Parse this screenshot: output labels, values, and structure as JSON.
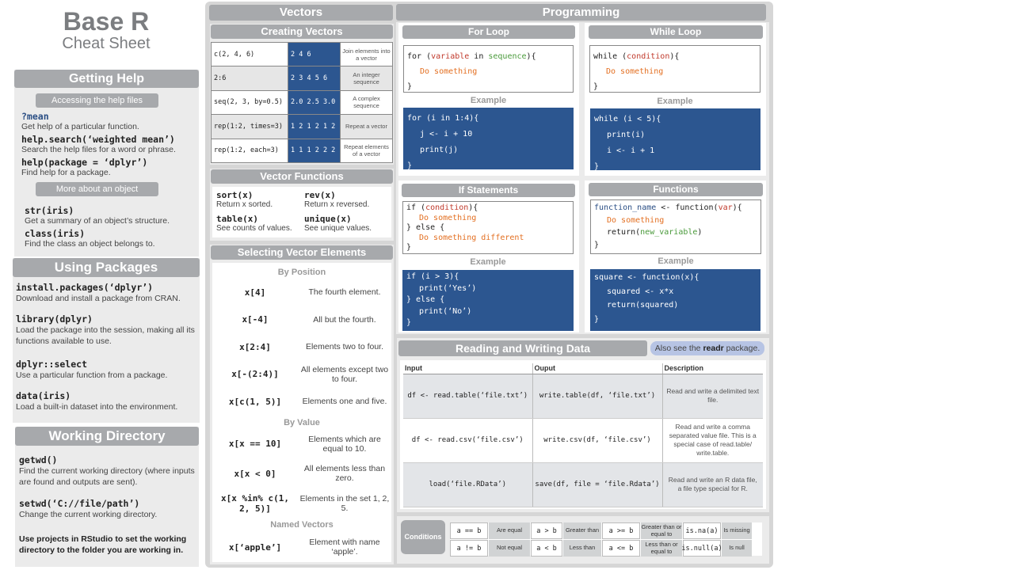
{
  "title": {
    "line1": "Base R",
    "line2": "Cheat Sheet"
  },
  "help": {
    "header": "Getting Help",
    "sub1": "Accessing the help files",
    "items1": [
      {
        "code": "?mean",
        "desc": "Get help of a particular function."
      },
      {
        "code": "help.search(‘weighted mean’)",
        "desc": "Search the help files for a word or phrase."
      },
      {
        "code": "help(package = ‘dplyr’)",
        "desc": "Find help for a package."
      }
    ],
    "sub2": "More about an object",
    "items2": [
      {
        "code": "str(iris)",
        "desc": "Get a summary of an object’s structure."
      },
      {
        "code": "class(iris)",
        "desc": "Find the class an object belongs to."
      }
    ]
  },
  "packages": {
    "header": "Using Packages",
    "items": [
      {
        "code": "install.packages(‘dplyr’)",
        "desc": "Download and install a package from CRAN."
      },
      {
        "code": "library(dplyr)",
        "desc": "Load the package into the session, making all its functions available to use."
      },
      {
        "code": "dplyr::select",
        "desc": "Use a particular function from a package."
      },
      {
        "code": "data(iris)",
        "desc": "Load a built-in dataset into the environment."
      }
    ]
  },
  "wd": {
    "header": "Working Directory",
    "items": [
      {
        "code": "getwd()",
        "desc": "Find the current working directory (where inputs are found and outputs are sent)."
      },
      {
        "code": "setwd(‘C://file/path’)",
        "desc": "Change the current working directory."
      }
    ],
    "note": "Use projects in RStudio to set the working directory to the folder you are working in."
  },
  "vectors": {
    "header": "Vectors",
    "creating": {
      "header": "Creating Vectors",
      "rows": [
        {
          "code": "c(2, 4, 6)",
          "result": "2 4 6",
          "desc": "Join elements into a vector"
        },
        {
          "code": "2:6",
          "result": "2 3 4 5 6",
          "desc": "An integer sequence"
        },
        {
          "code": "seq(2, 3, by=0.5)",
          "result": "2.0 2.5 3.0",
          "desc": "A complex sequence"
        },
        {
          "code": "rep(1:2, times=3)",
          "result": "1 2 1 2 1 2",
          "desc": "Repeat a vector"
        },
        {
          "code": "rep(1:2, each=3)",
          "result": "1 1 1 2 2 2",
          "desc": "Repeat elements of a vector"
        }
      ]
    },
    "functions": {
      "header": "Vector Functions",
      "items": [
        {
          "code": "sort(x)",
          "desc": "Return x sorted."
        },
        {
          "code": "rev(x)",
          "desc": "Return x reversed."
        },
        {
          "code": "table(x)",
          "desc": "See counts of values."
        },
        {
          "code": "unique(x)",
          "desc": "See unique values."
        }
      ]
    },
    "selecting": {
      "header": "Selecting Vector Elements",
      "by_position": "By Position",
      "position_rows": [
        {
          "code": "x[4]",
          "desc": "The fourth element."
        },
        {
          "code": "x[-4]",
          "desc": "All but the fourth."
        },
        {
          "code": "x[2:4]",
          "desc": "Elements two to four."
        },
        {
          "code": "x[-(2:4)]",
          "desc": "All elements except two to four."
        },
        {
          "code": "x[c(1, 5)]",
          "desc": "Elements one and five."
        }
      ],
      "by_value": "By Value",
      "value_rows": [
        {
          "code": "x[x == 10]",
          "desc": "Elements which are equal to 10."
        },
        {
          "code": "x[x < 0]",
          "desc": "All elements less than zero."
        },
        {
          "code": "x[x %in% c(1, 2, 5)]",
          "desc": "Elements in the set 1, 2, 5."
        }
      ],
      "named": "Named Vectors",
      "named_rows": [
        {
          "code": "x[‘apple’]",
          "desc": "Element with name ‘apple’."
        }
      ]
    }
  },
  "programming": {
    "header": "Programming",
    "example_label": "Example",
    "for_loop": {
      "header": "For Loop",
      "syntax": [
        "for (variable in sequence){",
        "Do something",
        "}"
      ],
      "example": [
        "for (i in 1:4){",
        "j <- i + 10",
        "print(j)",
        "}"
      ]
    },
    "while_loop": {
      "header": "While Loop",
      "syntax": [
        "while (condition){",
        "Do something",
        "}"
      ],
      "example": [
        "while (i < 5){",
        "print(i)",
        "i <- i + 1",
        "}"
      ]
    },
    "if_statements": {
      "header": "If Statements",
      "syntax": [
        "if (condition){",
        "Do something",
        "} else {",
        "Do something different",
        "}"
      ],
      "example": [
        "if (i > 3){",
        "print(‘Yes’)",
        "} else {",
        "print(‘No’)",
        "}"
      ]
    },
    "functions": {
      "header": "Functions",
      "syntax": [
        "function_name <- function(var){",
        "Do something",
        "return(new_variable)",
        "}"
      ],
      "example": [
        "square <- function(x){",
        "squared <- x*x",
        "return(squared)",
        "}"
      ]
    }
  },
  "rw": {
    "header": "Reading and Writing Data",
    "note_pre": "Also see the ",
    "note_bold": "readr",
    "note_post": " package.",
    "columns": [
      "Input",
      "Ouput",
      "Description"
    ],
    "rows": [
      {
        "input": "df <- read.table(‘file.txt’)",
        "output": "write.table(df, ‘file.txt’)",
        "desc": "Read and write a delimited text file."
      },
      {
        "input": "df <- read.csv(‘file.csv’)",
        "output": "write.csv(df, ‘file.csv’)",
        "desc": "Read and write a comma separated value file. This is a special case of read.table/ write.table."
      },
      {
        "input": "load(‘file.RData’)",
        "output": "save(df, file = ‘file.Rdata’)",
        "desc": "Read and write an R data file, a file type special for R."
      }
    ]
  },
  "conditions": {
    "label": "Conditions",
    "items": [
      {
        "code": "a == b",
        "desc": "Are equal"
      },
      {
        "code": "a > b",
        "desc": "Greater than"
      },
      {
        "code": "a >= b",
        "desc": "Greater than or equal to"
      },
      {
        "code": "is.na(a)",
        "desc": "Is missing"
      },
      {
        "code": "a != b",
        "desc": "Not equal"
      },
      {
        "code": "a < b",
        "desc": "Less than"
      },
      {
        "code": "a <= b",
        "desc": "Less than or equal to"
      },
      {
        "code": "is.null(a)",
        "desc": "Is null"
      }
    ]
  }
}
